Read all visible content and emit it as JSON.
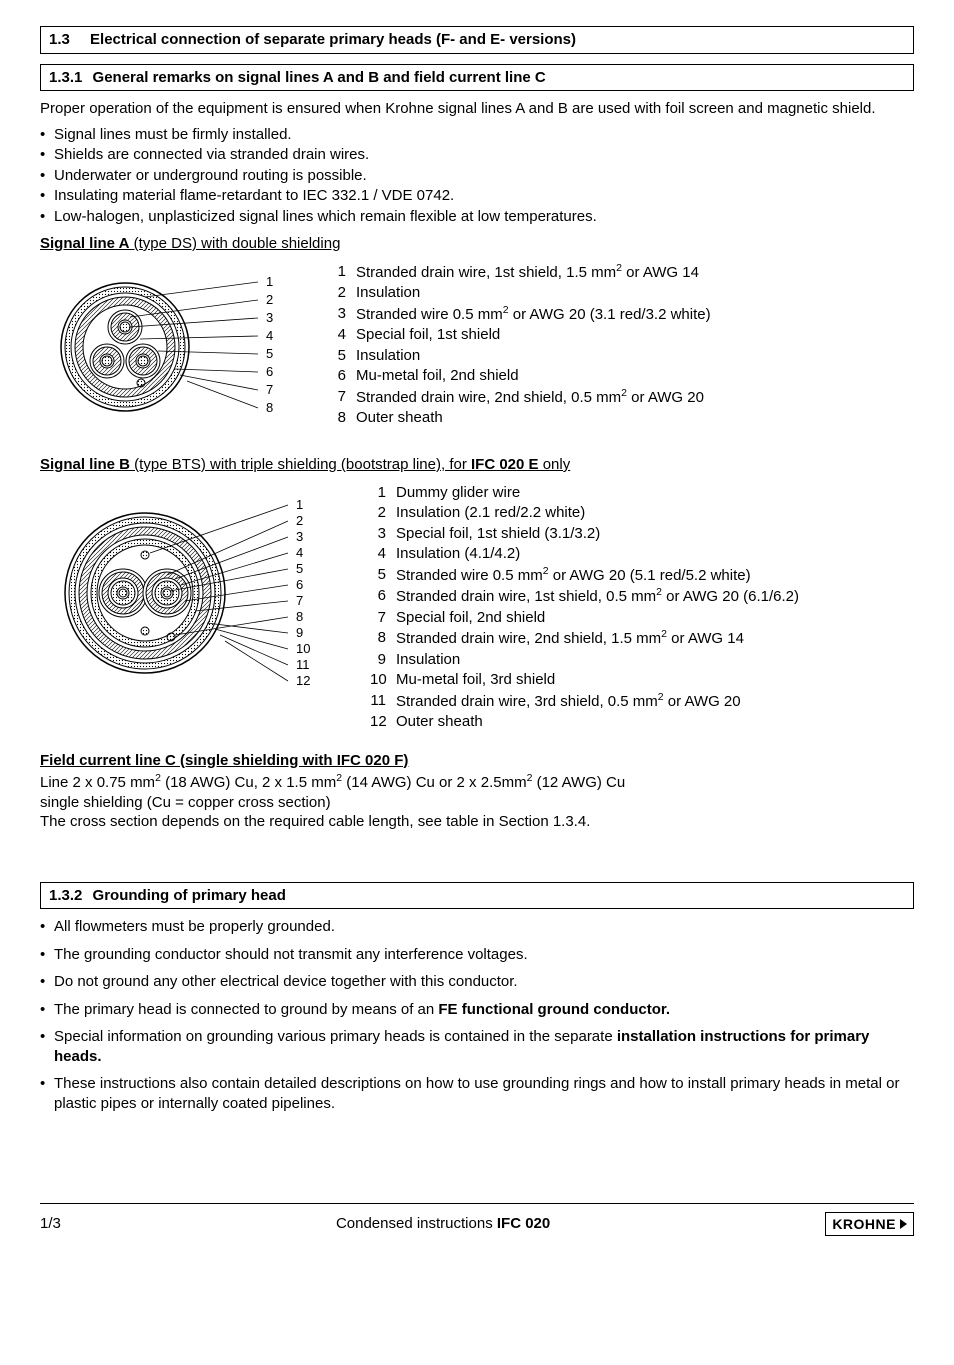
{
  "section13": {
    "num": "1.3",
    "title": "Electrical connection of separate primary heads (F- and E- versions)"
  },
  "section131": {
    "num": "1.3.1",
    "title": "General remarks on signal lines A and B and field current line C"
  },
  "intro": "Proper operation of the equipment is ensured when Krohne signal lines A and B are used with foil screen and magnetic shield.",
  "introBullets": [
    "Signal lines must be firmly installed.",
    "Shields are connected via stranded drain wires.",
    "Underwater or underground routing is possible.",
    "Insulating material flame-retardant to IEC 332.1 / VDE 0742.",
    "Low-halogen, unplasticized signal lines which remain flexible at low temperatures."
  ],
  "sigA": {
    "label_bold": "Signal line A",
    "label_plain": " (type DS) with double shielding",
    "diagram": {
      "outerR": 60,
      "innerGroupR": 42,
      "wireR": 14,
      "centers": [
        [
          0,
          -20
        ],
        [
          -18,
          12
        ],
        [
          18,
          12
        ]
      ],
      "labelCount": 8
    },
    "legend": [
      {
        "n": "1",
        "t": "Stranded drain wire, 1st shield, 1.5 mm",
        "sup": "2",
        "tail": " or AWG 14"
      },
      {
        "n": "2",
        "t": "Insulation"
      },
      {
        "n": "3",
        "t": "Stranded wire 0.5 mm",
        "sup": "2",
        "tail": " or AWG 20 (3.1 red/3.2 white)"
      },
      {
        "n": "4",
        "t": "Special foil, 1st shield"
      },
      {
        "n": "5",
        "t": "Insulation"
      },
      {
        "n": "6",
        "t": "Mu-metal foil, 2nd shield"
      },
      {
        "n": "7",
        "t": "Stranded drain wire, 2nd shield, 0.5 mm",
        "sup": "2",
        "tail": " or AWG 20"
      },
      {
        "n": "8",
        "t": "Outer sheath"
      }
    ]
  },
  "sigB": {
    "label_bold": "Signal line B",
    "label_plain": " (type BTS) with triple shielding (bootstrap line), for ",
    "label_bold2": "IFC 020 E",
    "label_plain2": " only",
    "diagram": {
      "outerR": 72,
      "labelCount": 12
    },
    "legend": [
      {
        "n": "1",
        "t": "Dummy glider wire"
      },
      {
        "n": "2",
        "t": "Insulation (2.1 red/2.2 white)"
      },
      {
        "n": "3",
        "t": "Special foil, 1st shield (3.1/3.2)"
      },
      {
        "n": "4",
        "t": "Insulation (4.1/4.2)"
      },
      {
        "n": "5",
        "t": "Stranded wire 0.5 mm",
        "sup": "2",
        "tail": " or AWG 20 (5.1 red/5.2 white)"
      },
      {
        "n": "6",
        "t": "Stranded drain wire, 1st shield, 0.5 mm",
        "sup": "2",
        "tail": " or AWG 20 (6.1/6.2)"
      },
      {
        "n": "7",
        "t": "Special foil, 2nd shield"
      },
      {
        "n": "8",
        "t": "Stranded drain wire, 2nd shield, 1.5 mm",
        "sup": "2",
        "tail": " or AWG 14"
      },
      {
        "n": "9",
        "t": "Insulation"
      },
      {
        "n": "10",
        "t": "Mu-metal foil, 3rd shield"
      },
      {
        "n": "11",
        "t": "Stranded drain wire, 3rd shield, 0.5 mm",
        "sup": "2",
        "tail": " or AWG 20"
      },
      {
        "n": "12",
        "t": "Outer sheath"
      }
    ]
  },
  "fieldC": {
    "title": "Field current line C (single shielding with IFC 020 F)",
    "line1_a": "Line 2 x 0.75 mm",
    "line1_b": " (18 AWG) Cu, 2 x 1.5 mm",
    "line1_c": " (14 AWG) Cu or 2 x 2.5mm",
    "line1_d": " (12 AWG) Cu",
    "line2": "single shielding (Cu = copper cross section)",
    "line3": "The cross section depends on the required cable length, see table in Section 1.3.4."
  },
  "section132": {
    "num": "1.3.2",
    "title": "Grounding of primary head"
  },
  "groundBullets": [
    {
      "text": "All flowmeters must be properly grounded."
    },
    {
      "text": "The grounding conductor should not transmit any interference voltages."
    },
    {
      "text": "Do not ground any other electrical device together with this conductor."
    },
    {
      "pre": "The primary head is connected to ground by means of an ",
      "bold": "FE functional ground conductor."
    },
    {
      "pre": "Special information on grounding various primary heads is contained in the separate ",
      "bold": "installation instructions for primary heads."
    },
    {
      "text": "These instructions also contain detailed descriptions on how to use grounding rings and how to install primary heads in metal or plastic pipes or internally coated pipelines."
    }
  ],
  "footer": {
    "page": "1/3",
    "center_a": "Condensed instructions ",
    "center_b": "IFC 020",
    "brand": "KROHNE"
  }
}
